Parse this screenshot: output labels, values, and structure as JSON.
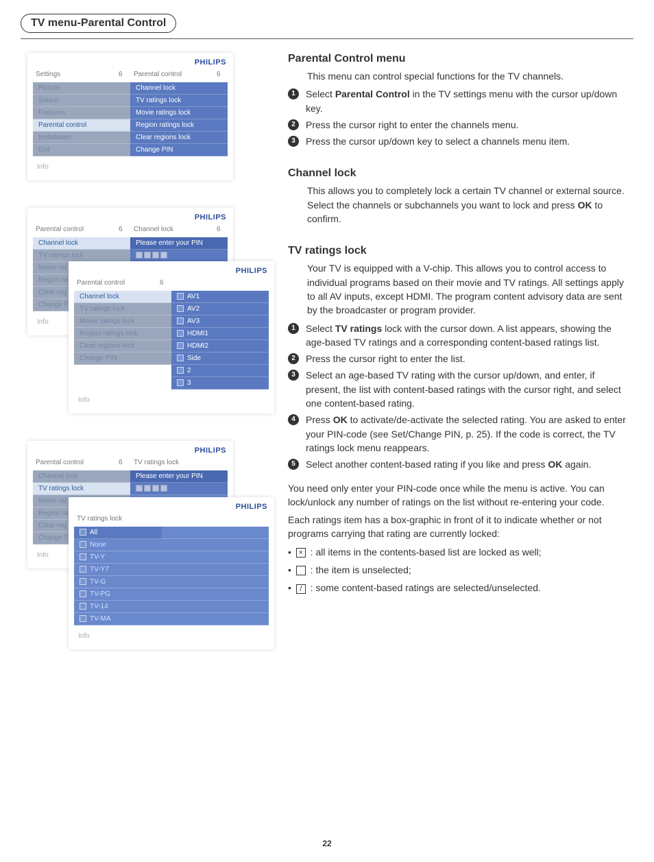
{
  "page": {
    "title": "TV menu-Parental Control",
    "number": "22"
  },
  "brand": "PHILIPS",
  "panel1": {
    "crumb_l": "Settings",
    "crumb_lnum": "6",
    "crumb_r": "Parental control",
    "crumb_rnum": "6",
    "left": [
      "Picture",
      "Sound",
      "Features",
      "Parental control",
      "Installation",
      "Exit"
    ],
    "left_sel_index": 3,
    "right": [
      "Channel lock",
      "TV ratings lock",
      "Movie ratings lock",
      "Region ratings lock",
      "Clear regions lock",
      "Change PIN"
    ],
    "info": "Info"
  },
  "panel2a": {
    "crumb_l": "Parental control",
    "crumb_lnum": "6",
    "crumb_r": "Channel lock",
    "crumb_rnum": "6",
    "left": [
      "Channel lock",
      "TV ratings lock",
      "Movie rat",
      "Region ra",
      "Clear reg",
      "Change F"
    ],
    "left_sel_index": 0,
    "right_hdr": "Please enter your PIN",
    "info": "Info"
  },
  "panel2b": {
    "crumb_l": "Parental control",
    "crumb_lnum": "6",
    "left": [
      "Channel lock",
      "TV ratings lock",
      "Movie ratings lock",
      "Region ratings lock",
      "Clear regions lock",
      "Change PIN"
    ],
    "left_sel_index": 0,
    "right": [
      "AV1",
      "AV2",
      "AV3",
      "HDMI1",
      "HDMI2",
      "Side",
      "2",
      "3"
    ],
    "info": "Info"
  },
  "panel3a": {
    "crumb_l": "Parental control",
    "crumb_lnum": "6",
    "crumb_r": "TV ratings lock",
    "left": [
      "Channel lock",
      "TV ratings lock",
      "Movie rat",
      "Region ra",
      "Clear reg",
      "Change F"
    ],
    "left_sel_index": 1,
    "right_hdr": "Please enter your PIN",
    "info": "Info"
  },
  "panel3b": {
    "crumb_l": "TV ratings lock",
    "right": [
      "All",
      "None",
      "TV-Y",
      "TV-Y7",
      "TV-G",
      "TV-PG",
      "TV-14",
      "TV-MA"
    ],
    "info": "Info"
  },
  "sections": {
    "s1_title": "Parental Control menu",
    "s1_intro": "This menu can control special functions for the TV channels.",
    "s1_steps": [
      "Select <b>Parental Control</b> in the TV settings menu with the cursor up/down key.",
      "Press the cursor right to enter the channels menu.",
      "Press the cursor up/down key to select a channels menu item."
    ],
    "s2_title": "Channel lock",
    "s2_body": "This allows you to completely lock a certain TV channel or external source. Select the channels or subchannels you want to lock and press <b>OK</b> to confirm.",
    "s3_title": "TV ratings lock",
    "s3_body": "Your TV is equipped with a V-chip. This allows you to control access to individual programs based on their movie and TV ratings. All settings apply to all AV inputs, except HDMI. The program content advisory data are sent by the broadcaster or program provider.",
    "s3_steps": [
      "Select <b>TV ratings</b> lock with the cursor down. A list appears, showing the age-based TV ratings and a corresponding content-based ratings list.",
      "Press the cursor right to enter the list.",
      "Select an age-based TV rating with the cursor up/down, and enter, if present, the list with content-based ratings with the cursor right, and select one content-based rating.",
      "Press <b>OK</b> to activate/de-activate the selected rating. You are asked to enter your PIN-code (see Set/Change PIN, p. 25). If the code is correct, the TV ratings lock menu reappears.",
      "Select another content-based rating if you like and press <b>OK</b> again."
    ],
    "s3_tail1": "You need only enter your PIN-code once while the menu is active. You can lock/unlock any number of ratings on the list without re-entering your code.",
    "s3_tail2": "Each ratings item has a box-graphic in front of it to indicate whether or not programs carrying that rating are currently locked:",
    "bullets": [
      {
        "icon": "×",
        "text": ": all items in the contents-based list are locked as well;"
      },
      {
        "icon": "",
        "text": ": the item is unselected;"
      },
      {
        "icon": "/",
        "text": ": some content-based ratings are selected/unselected."
      }
    ]
  }
}
